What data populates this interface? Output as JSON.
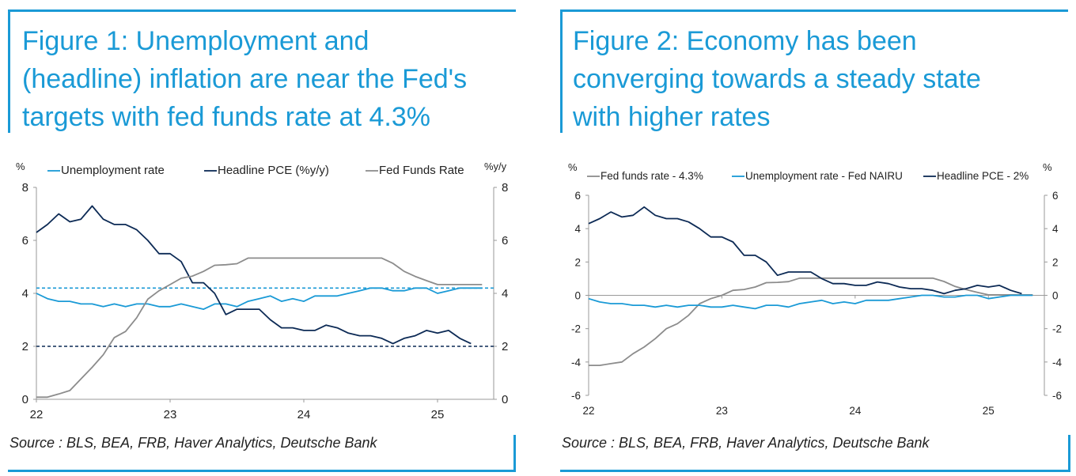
{
  "figure1": {
    "title_lines": [
      "Figure 1: Unemployment and",
      "(headline) inflation are near the Fed's",
      "targets with fed funds rate at 4.3%"
    ],
    "source": "Source : BLS, BEA, FRB, Haver Analytics, Deutsche Bank"
  },
  "figure2": {
    "title_lines": [
      "Figure 2: Economy has been",
      "converging towards a steady state",
      "with higher rates"
    ],
    "source": "Source : BLS, BEA, FRB, Haver Analytics, Deutsche Bank"
  },
  "chart_data": [
    {
      "type": "line",
      "y_left_label": "%",
      "y_right_label": "%y/y",
      "ylim": [
        0,
        8
      ],
      "y_ticks": [
        0,
        2,
        4,
        6,
        8
      ],
      "xlim": [
        2022.0,
        2025.42
      ],
      "x_ticks": [
        2022,
        2023,
        2024,
        2025
      ],
      "x_tick_labels": [
        "22",
        "23",
        "24",
        "25"
      ],
      "legend_position": "top",
      "grid": false,
      "series": [
        {
          "name": "Unemployment rate",
          "color": "#1a9ad6",
          "x": [
            2022.0,
            2022.083,
            2022.167,
            2022.25,
            2022.333,
            2022.417,
            2022.5,
            2022.583,
            2022.667,
            2022.75,
            2022.833,
            2022.917,
            2023.0,
            2023.083,
            2023.167,
            2023.25,
            2023.333,
            2023.417,
            2023.5,
            2023.583,
            2023.667,
            2023.75,
            2023.833,
            2023.917,
            2024.0,
            2024.083,
            2024.167,
            2024.25,
            2024.333,
            2024.417,
            2024.5,
            2024.583,
            2024.667,
            2024.75,
            2024.833,
            2024.917,
            2025.0,
            2025.083,
            2025.167,
            2025.25,
            2025.333
          ],
          "values": [
            4.0,
            3.8,
            3.7,
            3.7,
            3.6,
            3.6,
            3.5,
            3.6,
            3.5,
            3.6,
            3.6,
            3.5,
            3.5,
            3.6,
            3.5,
            3.4,
            3.6,
            3.6,
            3.5,
            3.7,
            3.8,
            3.9,
            3.7,
            3.8,
            3.7,
            3.9,
            3.9,
            3.9,
            4.0,
            4.1,
            4.2,
            4.2,
            4.1,
            4.1,
            4.2,
            4.2,
            4.0,
            4.1,
            4.2,
            4.2,
            4.2
          ]
        },
        {
          "name": "Headline PCE (%y/y)",
          "color": "#0c2a55",
          "x": [
            2022.0,
            2022.083,
            2022.167,
            2022.25,
            2022.333,
            2022.417,
            2022.5,
            2022.583,
            2022.667,
            2022.75,
            2022.833,
            2022.917,
            2023.0,
            2023.083,
            2023.167,
            2023.25,
            2023.333,
            2023.417,
            2023.5,
            2023.583,
            2023.667,
            2023.75,
            2023.833,
            2023.917,
            2024.0,
            2024.083,
            2024.167,
            2024.25,
            2024.333,
            2024.417,
            2024.5,
            2024.583,
            2024.667,
            2024.75,
            2024.833,
            2024.917,
            2025.0,
            2025.083,
            2025.167,
            2025.25
          ],
          "values": [
            6.3,
            6.6,
            7.0,
            6.7,
            6.8,
            7.3,
            6.8,
            6.6,
            6.6,
            6.4,
            6.0,
            5.5,
            5.5,
            5.2,
            4.4,
            4.4,
            4.0,
            3.2,
            3.4,
            3.4,
            3.4,
            3.0,
            2.7,
            2.7,
            2.6,
            2.6,
            2.8,
            2.7,
            2.5,
            2.4,
            2.4,
            2.3,
            2.1,
            2.3,
            2.4,
            2.6,
            2.5,
            2.6,
            2.3,
            2.1
          ]
        },
        {
          "name": "Fed Funds Rate",
          "color": "#8c8c8c",
          "x": [
            2022.0,
            2022.083,
            2022.167,
            2022.25,
            2022.333,
            2022.417,
            2022.5,
            2022.583,
            2022.667,
            2022.75,
            2022.833,
            2022.917,
            2023.0,
            2023.083,
            2023.167,
            2023.25,
            2023.333,
            2023.417,
            2023.5,
            2023.583,
            2023.667,
            2023.75,
            2023.833,
            2023.917,
            2024.0,
            2024.083,
            2024.167,
            2024.25,
            2024.333,
            2024.417,
            2024.5,
            2024.583,
            2024.667,
            2024.75,
            2024.833,
            2024.917,
            2025.0,
            2025.083,
            2025.167,
            2025.25,
            2025.333
          ],
          "values": [
            0.08,
            0.08,
            0.2,
            0.33,
            0.77,
            1.21,
            1.68,
            2.33,
            2.56,
            3.08,
            3.78,
            4.1,
            4.33,
            4.57,
            4.65,
            4.83,
            5.06,
            5.08,
            5.12,
            5.33,
            5.33,
            5.33,
            5.33,
            5.33,
            5.33,
            5.33,
            5.33,
            5.33,
            5.33,
            5.33,
            5.33,
            5.33,
            5.13,
            4.83,
            4.64,
            4.48,
            4.33,
            4.33,
            4.33,
            4.33,
            4.33
          ]
        }
      ],
      "reference_lines": [
        {
          "y": 4.2,
          "color": "#1a9ad6",
          "style": "dashed"
        },
        {
          "y": 2.0,
          "color": "#0c2a55",
          "style": "dashed"
        }
      ]
    },
    {
      "type": "line",
      "y_left_label": "%",
      "y_right_label": "%",
      "ylim": [
        -6,
        6
      ],
      "y_ticks": [
        -6,
        -4,
        -2,
        0,
        2,
        4,
        6
      ],
      "xlim": [
        2022.0,
        2025.42
      ],
      "x_ticks": [
        2022,
        2023,
        2024,
        2025
      ],
      "x_tick_labels": [
        "22",
        "23",
        "24",
        "25"
      ],
      "legend_position": "top",
      "grid": false,
      "series": [
        {
          "name": "Fed funds rate - 4.3%",
          "color": "#8c8c8c",
          "x": [
            2022.0,
            2022.083,
            2022.167,
            2022.25,
            2022.333,
            2022.417,
            2022.5,
            2022.583,
            2022.667,
            2022.75,
            2022.833,
            2022.917,
            2023.0,
            2023.083,
            2023.167,
            2023.25,
            2023.333,
            2023.417,
            2023.5,
            2023.583,
            2023.667,
            2023.75,
            2023.833,
            2023.917,
            2024.0,
            2024.083,
            2024.167,
            2024.25,
            2024.333,
            2024.417,
            2024.5,
            2024.583,
            2024.667,
            2024.75,
            2024.833,
            2024.917,
            2025.0,
            2025.083,
            2025.167,
            2025.25,
            2025.333
          ],
          "values": [
            -4.2,
            -4.2,
            -4.1,
            -4.0,
            -3.5,
            -3.1,
            -2.6,
            -2.0,
            -1.7,
            -1.2,
            -0.5,
            -0.2,
            0.0,
            0.3,
            0.35,
            0.5,
            0.76,
            0.78,
            0.82,
            1.03,
            1.03,
            1.03,
            1.03,
            1.03,
            1.03,
            1.03,
            1.03,
            1.03,
            1.03,
            1.03,
            1.03,
            1.03,
            0.83,
            0.53,
            0.34,
            0.18,
            0.03,
            0.03,
            0.03,
            0.03,
            0.03
          ]
        },
        {
          "name": "Unemployment rate - Fed NAIRU",
          "color": "#1a9ad6",
          "x": [
            2022.0,
            2022.083,
            2022.167,
            2022.25,
            2022.333,
            2022.417,
            2022.5,
            2022.583,
            2022.667,
            2022.75,
            2022.833,
            2022.917,
            2023.0,
            2023.083,
            2023.167,
            2023.25,
            2023.333,
            2023.417,
            2023.5,
            2023.583,
            2023.667,
            2023.75,
            2023.833,
            2023.917,
            2024.0,
            2024.083,
            2024.167,
            2024.25,
            2024.333,
            2024.417,
            2024.5,
            2024.583,
            2024.667,
            2024.75,
            2024.833,
            2024.917,
            2025.0,
            2025.083,
            2025.167,
            2025.25,
            2025.333
          ],
          "values": [
            -0.2,
            -0.4,
            -0.5,
            -0.5,
            -0.6,
            -0.6,
            -0.7,
            -0.6,
            -0.7,
            -0.6,
            -0.6,
            -0.7,
            -0.7,
            -0.6,
            -0.7,
            -0.8,
            -0.6,
            -0.6,
            -0.7,
            -0.5,
            -0.4,
            -0.3,
            -0.5,
            -0.4,
            -0.5,
            -0.3,
            -0.3,
            -0.3,
            -0.2,
            -0.1,
            0.0,
            0.0,
            -0.1,
            -0.1,
            0.0,
            0.0,
            -0.2,
            -0.1,
            0.0,
            0.0,
            0.0
          ]
        },
        {
          "name": "Headline PCE - 2%",
          "color": "#0c2a55",
          "x": [
            2022.0,
            2022.083,
            2022.167,
            2022.25,
            2022.333,
            2022.417,
            2022.5,
            2022.583,
            2022.667,
            2022.75,
            2022.833,
            2022.917,
            2023.0,
            2023.083,
            2023.167,
            2023.25,
            2023.333,
            2023.417,
            2023.5,
            2023.583,
            2023.667,
            2023.75,
            2023.833,
            2023.917,
            2024.0,
            2024.083,
            2024.167,
            2024.25,
            2024.333,
            2024.417,
            2024.5,
            2024.583,
            2024.667,
            2024.75,
            2024.833,
            2024.917,
            2025.0,
            2025.083,
            2025.167,
            2025.25
          ],
          "values": [
            4.3,
            4.6,
            5.0,
            4.7,
            4.8,
            5.3,
            4.8,
            4.6,
            4.6,
            4.4,
            4.0,
            3.5,
            3.5,
            3.2,
            2.4,
            2.4,
            2.0,
            1.2,
            1.4,
            1.4,
            1.4,
            1.0,
            0.7,
            0.7,
            0.6,
            0.6,
            0.8,
            0.7,
            0.5,
            0.4,
            0.4,
            0.3,
            0.1,
            0.3,
            0.4,
            0.6,
            0.5,
            0.6,
            0.3,
            0.1
          ]
        }
      ],
      "reference_lines": []
    }
  ]
}
